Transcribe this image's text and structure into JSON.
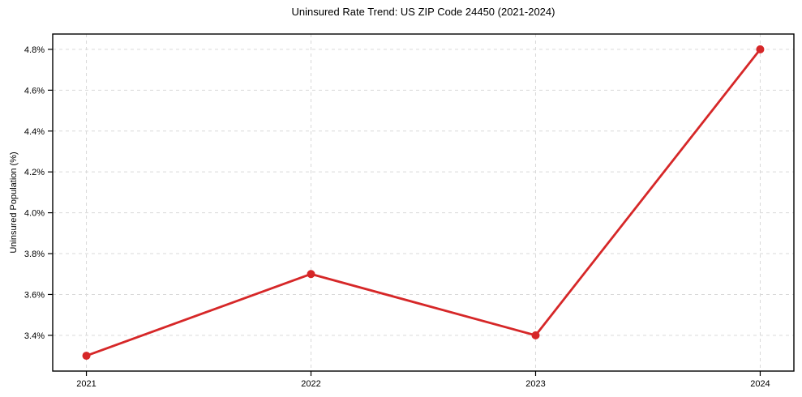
{
  "page": {
    "background": "#ffffff"
  },
  "chart_data": {
    "type": "line",
    "title": "Uninsured Rate Trend: US ZIP Code 24450 (2021-2024)",
    "xlabel": "",
    "ylabel": "Uninsured Population (%)",
    "x": [
      2021,
      2022,
      2023,
      2024
    ],
    "values": [
      3.3,
      3.7,
      3.4,
      4.8
    ],
    "xticks": [
      2021,
      2022,
      2023,
      2024
    ],
    "xtick_labels": [
      "2021",
      "2022",
      "2023",
      "2024"
    ],
    "yticks": [
      3.4,
      3.6,
      3.8,
      4.0,
      4.2,
      4.4,
      4.6,
      4.8
    ],
    "ytick_labels": [
      "3.4%",
      "3.6%",
      "3.8%",
      "4.0%",
      "4.2%",
      "4.4%",
      "4.6%",
      "4.8%"
    ],
    "xlim": [
      2020.85,
      2024.15
    ],
    "ylim": [
      3.225,
      4.875
    ],
    "grid": true,
    "legend": false,
    "style": {
      "line_color": "#d62728",
      "marker_color": "#d62728",
      "grid_color": "#d9d9d9",
      "spine_color": "#000000",
      "text_color": "#000000",
      "line_width": 2.8,
      "marker_radius": 5
    }
  }
}
